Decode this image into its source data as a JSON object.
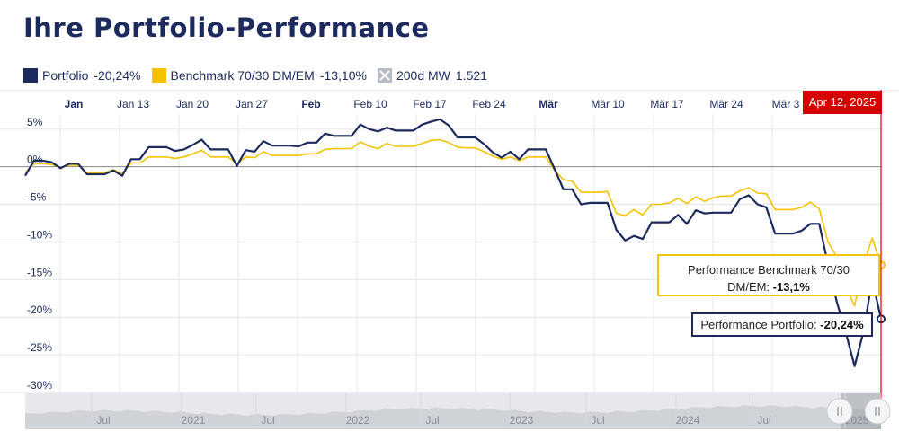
{
  "title": "Ihre Portfolio-Performance",
  "legend": [
    {
      "name": "Portfolio",
      "value": "-20,24%",
      "color": "#1c2a5e",
      "icon": "square-swatch"
    },
    {
      "name": "Benchmark 70/30 DM/EM",
      "value": "-13,10%",
      "color": "#f5c200",
      "icon": "square-swatch"
    },
    {
      "name": "200d MW",
      "value": "1.521",
      "color": "#b8bcc4",
      "icon": "x-box-icon"
    }
  ],
  "date_badge": "Apr 12, 2025",
  "tooltips": {
    "benchmark_label": "Performance Benchmark 70/30",
    "benchmark_label2": "DM/EM: ",
    "benchmark_value": "-13,1%",
    "portfolio_label": "Performance Portfolio: ",
    "portfolio_value": "-20,24%"
  },
  "chart_data": {
    "type": "line",
    "xlabels": [
      {
        "label": "Jan",
        "bold": true
      },
      {
        "label": "Jan 13",
        "bold": false
      },
      {
        "label": "Jan 20",
        "bold": false
      },
      {
        "label": "Jan 27",
        "bold": false
      },
      {
        "label": "Feb",
        "bold": true
      },
      {
        "label": "Feb 10",
        "bold": false
      },
      {
        "label": "Feb 17",
        "bold": false
      },
      {
        "label": "Feb 24",
        "bold": false
      },
      {
        "label": "Mär",
        "bold": true
      },
      {
        "label": "Mär 10",
        "bold": false
      },
      {
        "label": "Mär 17",
        "bold": false
      },
      {
        "label": "Mär 24",
        "bold": false
      },
      {
        "label": "Mär 3",
        "bold": false
      }
    ],
    "yticks": [
      "5%",
      "0%",
      "-5%",
      "-10%",
      "-15%",
      "-20%",
      "-25%",
      "-30%"
    ],
    "ylim": [
      -30,
      7
    ],
    "series": [
      {
        "name": "Portfolio",
        "color": "#1c2a5e",
        "values": [
          -1.2,
          0.8,
          0.8,
          0.6,
          -0.2,
          0.4,
          0.4,
          -1,
          -1,
          -1,
          -0.5,
          -1.2,
          1,
          1,
          2.6,
          2.6,
          2.6,
          2.1,
          2.3,
          2.9,
          3.6,
          2.3,
          2.3,
          2.3,
          0.1,
          2.2,
          2,
          3.4,
          2.8,
          2.8,
          2.8,
          2.7,
          3.2,
          3.2,
          4.4,
          4.1,
          4.1,
          4.1,
          5.6,
          5,
          4.7,
          5.2,
          4.8,
          4.8,
          4.8,
          5.6,
          6,
          6.3,
          5.5,
          3.9,
          3.9,
          3.9,
          3,
          1.9,
          1.2,
          2,
          1,
          2.3,
          2.3,
          2.3,
          -0.3,
          -3,
          -3,
          -5,
          -4.8,
          -4.8,
          -4.8,
          -8.4,
          -9.8,
          -9.2,
          -9.6,
          -7.4,
          -7.4,
          -7.4,
          -6.4,
          -7.6,
          -5.8,
          -6.2,
          -6.1,
          -6.1,
          -6.1,
          -4.3,
          -3.8,
          -5,
          -5.4,
          -8.9,
          -8.9,
          -8.9,
          -8.5,
          -7.6,
          -7.6,
          -13,
          -18,
          -22,
          -26.5,
          -22,
          -15,
          -20.24
        ]
      },
      {
        "name": "Benchmark 70/30 DM/EM",
        "color": "#f5c200",
        "values": [
          -0.8,
          0.4,
          0.4,
          0.3,
          -0.1,
          0.2,
          0.2,
          -0.8,
          -0.8,
          -0.8,
          -0.4,
          -0.9,
          0.5,
          0.5,
          1.3,
          1.3,
          1.3,
          1.1,
          1.3,
          1.7,
          2.2,
          1.3,
          1.3,
          1.3,
          0.4,
          1.3,
          1.2,
          2,
          1.5,
          1.5,
          1.5,
          1.5,
          1.7,
          1.7,
          2.3,
          2.4,
          2.4,
          2.4,
          3.3,
          2.7,
          2.4,
          3.1,
          2.7,
          2.7,
          2.7,
          3.1,
          3.5,
          3.6,
          3.2,
          2.6,
          2.5,
          2.5,
          2,
          1.4,
          1,
          1.3,
          0.8,
          1.3,
          1.3,
          1.3,
          -0.5,
          -1.7,
          -1.9,
          -3.4,
          -3.4,
          -3.4,
          -3.3,
          -6.2,
          -6.5,
          -5.7,
          -6.4,
          -5,
          -5,
          -4.8,
          -4.2,
          -4.9,
          -4,
          -4.6,
          -4.1,
          -3.9,
          -3.9,
          -3.2,
          -2.8,
          -3.5,
          -3.6,
          -5.7,
          -5.7,
          -5.7,
          -5.4,
          -4.7,
          -5.6,
          -10,
          -12,
          -16,
          -18.5,
          -13,
          -9.5,
          -13.1
        ]
      }
    ],
    "navigator": {
      "labels": [
        "Jul",
        "2021",
        "Jul",
        "2022",
        "Jul",
        "2023",
        "Jul",
        "2024",
        "Jul",
        "2025"
      ]
    }
  }
}
